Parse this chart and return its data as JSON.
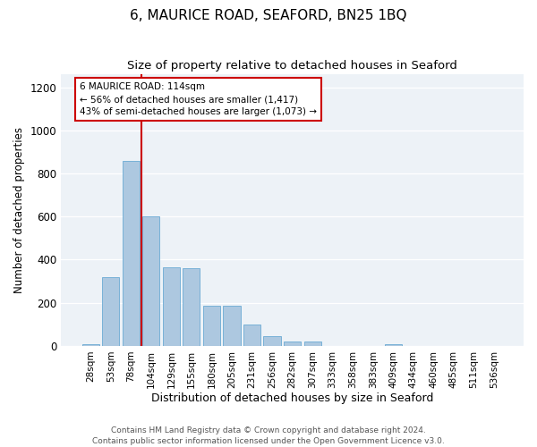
{
  "title": "6, MAURICE ROAD, SEAFORD, BN25 1BQ",
  "subtitle": "Size of property relative to detached houses in Seaford",
  "xlabel": "Distribution of detached houses by size in Seaford",
  "ylabel": "Number of detached properties",
  "bar_labels": [
    "28sqm",
    "53sqm",
    "78sqm",
    "104sqm",
    "129sqm",
    "155sqm",
    "180sqm",
    "205sqm",
    "231sqm",
    "256sqm",
    "282sqm",
    "307sqm",
    "333sqm",
    "358sqm",
    "383sqm",
    "409sqm",
    "434sqm",
    "460sqm",
    "485sqm",
    "511sqm",
    "536sqm"
  ],
  "bar_values": [
    10,
    320,
    860,
    600,
    365,
    360,
    185,
    185,
    100,
    45,
    20,
    20,
    0,
    0,
    0,
    10,
    0,
    0,
    0,
    0,
    0
  ],
  "bar_color": "#adc8e0",
  "bar_edge_color": "#6aaad4",
  "vline_color": "#cc0000",
  "annotation_text": "6 MAURICE ROAD: 114sqm\n← 56% of detached houses are smaller (1,417)\n43% of semi-detached houses are larger (1,073) →",
  "annotation_box_color": "#cc0000",
  "ylim": [
    0,
    1260
  ],
  "yticks": [
    0,
    200,
    400,
    600,
    800,
    1000,
    1200
  ],
  "plot_bg_color": "#edf2f7",
  "footer_text": "Contains HM Land Registry data © Crown copyright and database right 2024.\nContains public sector information licensed under the Open Government Licence v3.0.",
  "title_fontsize": 11,
  "subtitle_fontsize": 9.5,
  "xlabel_fontsize": 9,
  "ylabel_fontsize": 8.5,
  "footer_fontsize": 6.5,
  "tick_fontsize": 7.5,
  "ytick_fontsize": 8.5
}
